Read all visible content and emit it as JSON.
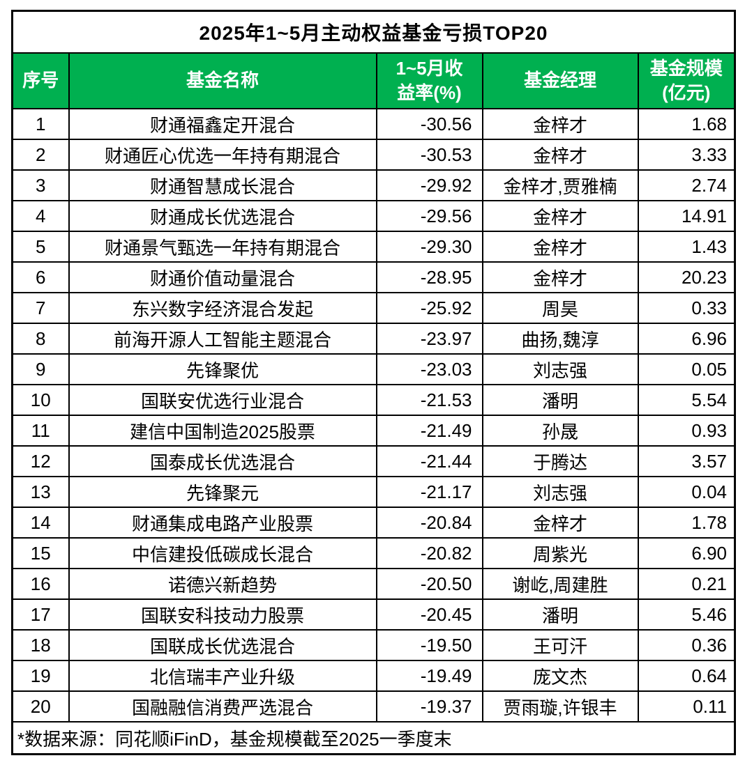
{
  "colors": {
    "header_background": "#00B050",
    "header_text": "#FFFFFF",
    "border": "#000000",
    "body_text": "#000000",
    "page_background": "#FFFFFF"
  },
  "header_display": [
    "序号",
    "基金名称",
    "1~5月收\n益率(%)",
    "基金经理",
    "基金规模\n(亿元)"
  ],
  "chart_data": {
    "type": "table",
    "title": "2025年1~5月主动权益基金亏损TOP20",
    "columns": [
      "序号",
      "基金名称",
      "1~5月收益率(%)",
      "基金经理",
      "基金规模(亿元)"
    ],
    "rows": [
      [
        "1",
        "财通福鑫定开混合",
        "-30.56",
        "金梓才",
        "1.68"
      ],
      [
        "2",
        "财通匠心优选一年持有期混合",
        "-30.53",
        "金梓才",
        "3.33"
      ],
      [
        "3",
        "财通智慧成长混合",
        "-29.92",
        "金梓才,贾雅楠",
        "2.74"
      ],
      [
        "4",
        "财通成长优选混合",
        "-29.56",
        "金梓才",
        "14.91"
      ],
      [
        "5",
        "财通景气甄选一年持有期混合",
        "-29.30",
        "金梓才",
        "1.43"
      ],
      [
        "6",
        "财通价值动量混合",
        "-28.95",
        "金梓才",
        "20.23"
      ],
      [
        "7",
        "东兴数字经济混合发起",
        "-25.92",
        "周昊",
        "0.33"
      ],
      [
        "8",
        "前海开源人工智能主题混合",
        "-23.97",
        "曲扬,魏淳",
        "6.96"
      ],
      [
        "9",
        "先锋聚优",
        "-23.03",
        "刘志强",
        "0.05"
      ],
      [
        "10",
        "国联安优选行业混合",
        "-21.53",
        "潘明",
        "5.54"
      ],
      [
        "11",
        "建信中国制造2025股票",
        "-21.49",
        "孙晟",
        "0.93"
      ],
      [
        "12",
        "国泰成长优选混合",
        "-21.44",
        "于腾达",
        "3.57"
      ],
      [
        "13",
        "先锋聚元",
        "-21.17",
        "刘志强",
        "0.04"
      ],
      [
        "14",
        "财通集成电路产业股票",
        "-20.84",
        "金梓才",
        "1.78"
      ],
      [
        "15",
        "中信建投低碳成长混合",
        "-20.82",
        "周紫光",
        "6.90"
      ],
      [
        "16",
        "诺德兴新趋势",
        "-20.50",
        "谢屹,周建胜",
        "0.21"
      ],
      [
        "17",
        "国联安科技动力股票",
        "-20.45",
        "潘明",
        "5.46"
      ],
      [
        "18",
        "国联成长优选混合",
        "-19.50",
        "王可汗",
        "0.36"
      ],
      [
        "19",
        "北信瑞丰产业升级",
        "-19.49",
        "庞文杰",
        "0.64"
      ],
      [
        "20",
        "国融融信消费严选混合",
        "-19.37",
        "贾雨璇,许银丰",
        "0.11"
      ]
    ],
    "footnote": "*数据来源：同花顺iFinD，基金规模截至2025一季度末"
  }
}
